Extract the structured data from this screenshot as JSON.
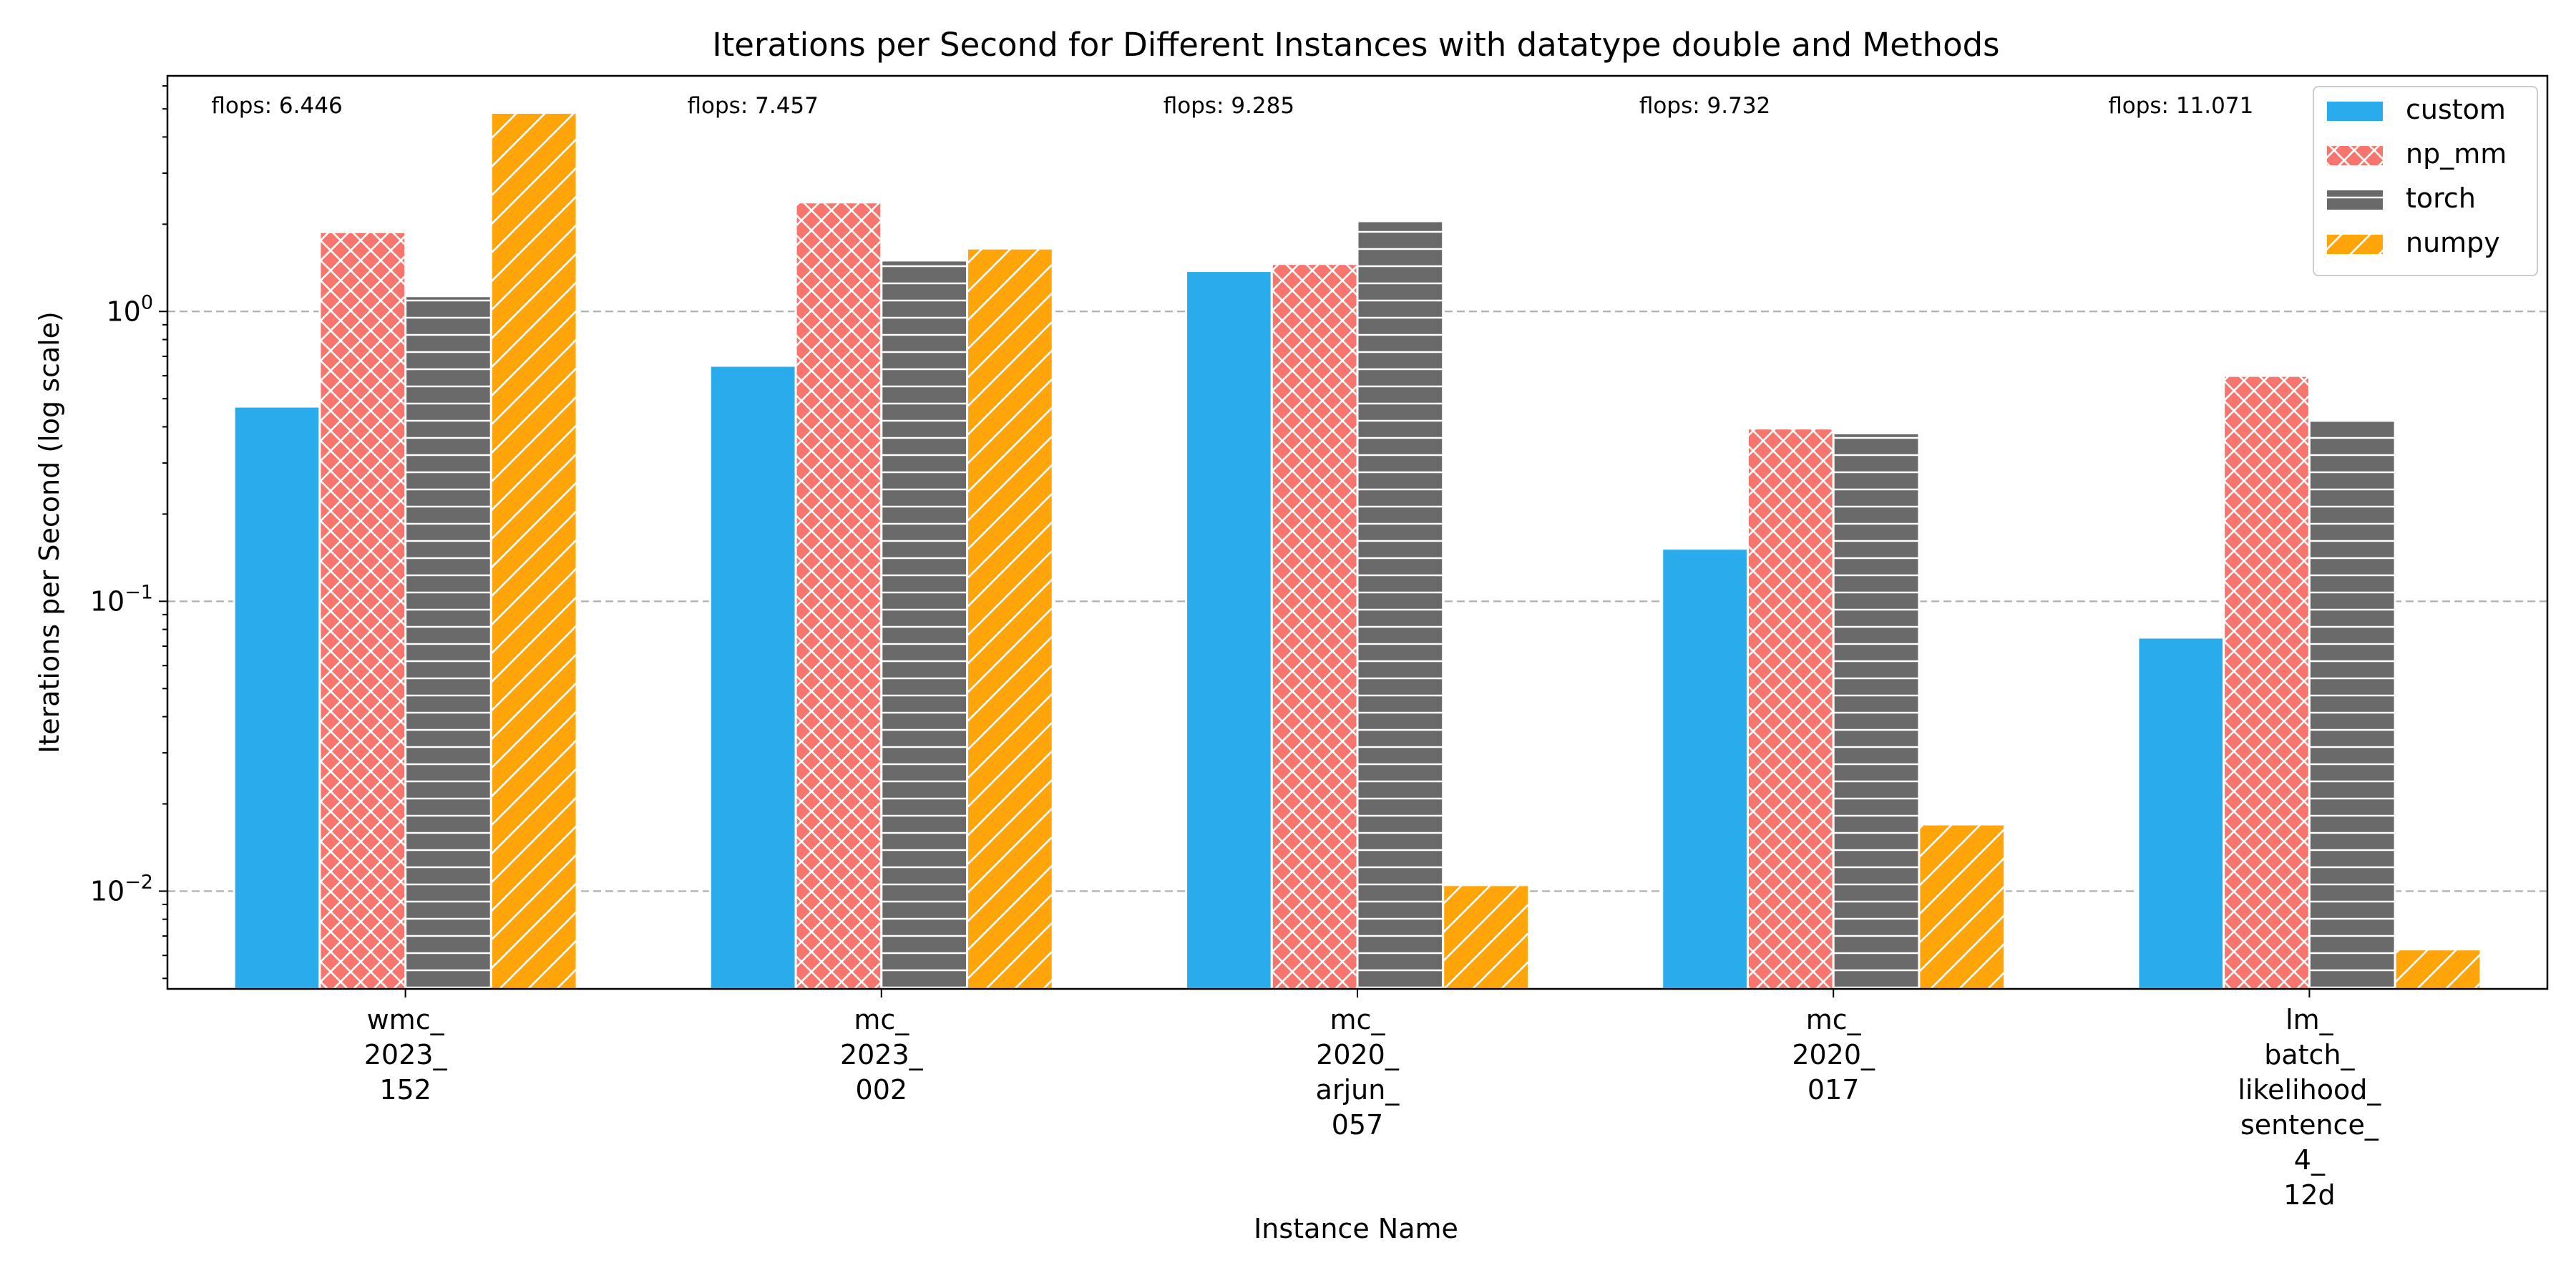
{
  "chart_data": {
    "type": "bar",
    "title": "Iterations per Second for Different Instances with datatype double and Methods",
    "xlabel": "Instance Name",
    "ylabel": "Iterations per Second (log scale)",
    "yscale": "log",
    "ylim": [
      0.0046,
      6.5
    ],
    "yticks": [
      {
        "value": 0.01,
        "base": "10",
        "exp": "−2"
      },
      {
        "value": 0.1,
        "base": "10",
        "exp": "−1"
      },
      {
        "value": 1,
        "base": "10",
        "exp": "0"
      }
    ],
    "grid": "horizontal dashed",
    "legend_position": "top-right",
    "categories": [
      [
        "wmc_",
        "2023_",
        "152"
      ],
      [
        "mc_",
        "2023_",
        "002"
      ],
      [
        "mc_",
        "2020_",
        "arjun_",
        "057"
      ],
      [
        "mc_",
        "2020_",
        "017"
      ],
      [
        "lm_",
        "batch_",
        "likelihood_",
        "sentence_",
        "4_",
        "12d"
      ]
    ],
    "annotations": [
      "flops: 6.446",
      "flops: 7.457",
      "flops: 9.285",
      "flops: 9.732",
      "flops: 11.071"
    ],
    "series": [
      {
        "name": "custom",
        "color": "#29abec",
        "hatch": "none",
        "values": [
          0.47,
          0.65,
          1.38,
          0.152,
          0.075
        ]
      },
      {
        "name": "np_mm",
        "color": "#f7756d",
        "hatch": "cross",
        "values": [
          1.88,
          2.38,
          1.46,
          0.395,
          0.6
        ]
      },
      {
        "name": "torch",
        "color": "#696969",
        "hatch": "horizontal",
        "values": [
          1.13,
          1.5,
          2.05,
          0.38,
          0.42
        ]
      },
      {
        "name": "numpy",
        "color": "#ffa50a",
        "hatch": "diagonal",
        "values": [
          4.85,
          1.65,
          0.0105,
          0.017,
          0.0063
        ]
      }
    ]
  }
}
